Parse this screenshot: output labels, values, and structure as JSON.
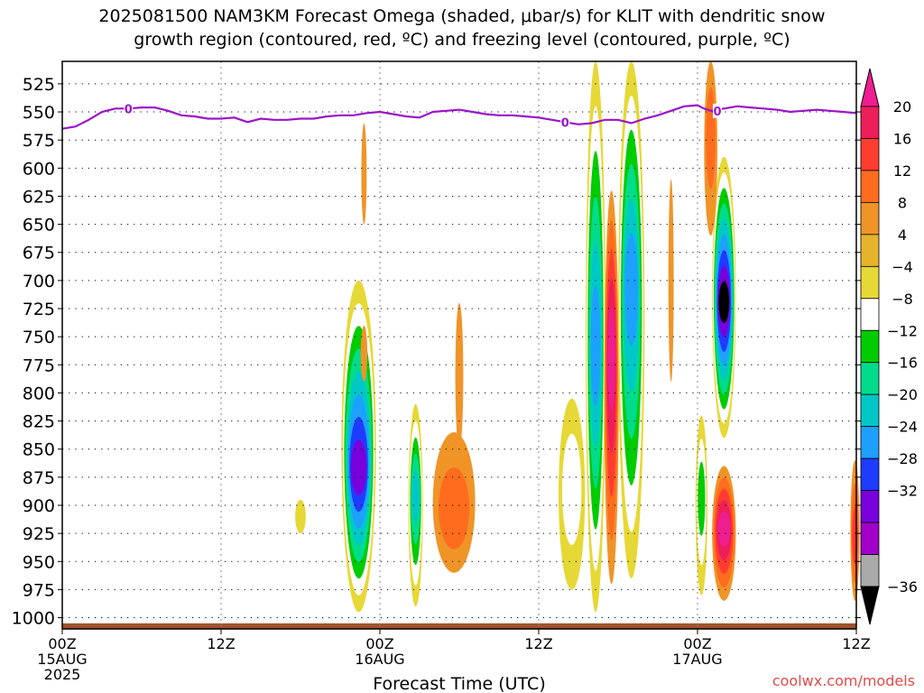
{
  "title_lines": [
    "2025081500 NAM3KM Forecast Omega (shaded, μbar/s) for KLIT with dendritic snow",
    "growth region (contoured, red, ºC) and freezing level (contoured, purple, ºC)"
  ],
  "xlabel": "Forecast Time (UTC)",
  "watermark": "coolwx.com/models",
  "chart_data": {
    "type": "heatmap",
    "title": "2025081500 NAM3KM Forecast Omega (shaded, μbar/s) for KLIT with dendritic snow growth region (contoured, red, ºC) and freezing level (contoured, purple, ºC)",
    "xlabel": "Forecast Time (UTC)",
    "ylabel": "",
    "x_unit": "hours since 2025-08-15 00Z",
    "xlim": [
      0,
      60
    ],
    "ylim": [
      1010,
      505
    ],
    "x_ticks": [
      {
        "x": 0,
        "lines": [
          "00Z",
          "15AUG",
          "2025"
        ]
      },
      {
        "x": 12,
        "lines": [
          "12Z"
        ]
      },
      {
        "x": 24,
        "lines": [
          "00Z",
          "16AUG"
        ]
      },
      {
        "x": 36,
        "lines": [
          "12Z"
        ]
      },
      {
        "x": 48,
        "lines": [
          "00Z",
          "17AUG"
        ]
      },
      {
        "x": 60,
        "lines": [
          "12Z"
        ]
      }
    ],
    "y_ticks": [
      525,
      550,
      575,
      600,
      625,
      650,
      675,
      700,
      725,
      750,
      775,
      800,
      825,
      850,
      875,
      900,
      925,
      950,
      975,
      1000
    ],
    "grid": true,
    "colorbar": {
      "labels": [
        "20",
        "16",
        "12",
        "8",
        "4",
        "−4",
        "−8",
        "−12",
        "−16",
        "−20",
        "−24",
        "−28",
        "−32",
        "−36"
      ],
      "colors": [
        "#ee1e5a",
        "#ff3c30",
        "#ff6c1e",
        "#f09428",
        "#e6b42c",
        "#e6d836",
        "#ffffff",
        "#00cc00",
        "#00dc8c",
        "#00c8c8",
        "#1ea0ff",
        "#1e3cff",
        "#7800dc",
        "#a000c8",
        "#aaaaaa"
      ],
      "top_arrow": "#ee1e90",
      "bottom_arrow": "#000000"
    },
    "freezing_level": {
      "label": "0",
      "color": "#9b14c8",
      "points": [
        [
          0,
          565
        ],
        [
          1,
          563
        ],
        [
          2,
          557
        ],
        [
          3,
          550
        ],
        [
          4,
          547
        ],
        [
          5,
          547
        ],
        [
          6,
          546
        ],
        [
          7,
          546
        ],
        [
          8,
          549
        ],
        [
          9,
          553
        ],
        [
          10,
          554
        ],
        [
          11,
          556
        ],
        [
          12,
          556
        ],
        [
          13,
          555
        ],
        [
          14,
          559
        ],
        [
          15,
          556
        ],
        [
          16,
          557
        ],
        [
          17,
          557
        ],
        [
          18,
          556
        ],
        [
          19,
          556
        ],
        [
          20,
          554
        ],
        [
          21,
          553
        ],
        [
          22,
          553
        ],
        [
          23,
          551
        ],
        [
          24,
          550
        ],
        [
          25,
          552
        ],
        [
          26,
          554
        ],
        [
          27,
          555
        ],
        [
          28,
          550
        ],
        [
          29,
          549
        ],
        [
          30,
          548
        ],
        [
          31,
          550
        ],
        [
          32,
          552
        ],
        [
          33,
          553
        ],
        [
          34,
          553
        ],
        [
          35,
          554
        ],
        [
          36,
          555
        ],
        [
          37,
          557
        ],
        [
          38,
          559
        ],
        [
          39,
          561
        ],
        [
          40,
          560
        ],
        [
          41,
          557
        ],
        [
          42,
          557
        ],
        [
          43,
          560
        ],
        [
          44,
          556
        ],
        [
          45,
          553
        ],
        [
          46,
          549
        ],
        [
          47,
          545
        ],
        [
          48,
          544
        ],
        [
          48.5,
          547
        ],
        [
          49,
          549
        ],
        [
          50,
          547
        ],
        [
          51,
          545
        ],
        [
          52,
          546
        ],
        [
          53,
          547
        ],
        [
          54,
          548
        ],
        [
          55,
          550
        ],
        [
          56,
          549
        ],
        [
          57,
          548
        ],
        [
          58,
          549
        ],
        [
          59,
          550
        ],
        [
          60,
          551
        ]
      ],
      "label_at": [
        5,
        38,
        49.5
      ]
    },
    "omega_features": [
      {
        "x": 22.4,
        "center": 870,
        "span": [
          700,
          995
        ],
        "min": -32,
        "halfwidth": 1.3
      },
      {
        "x": 26.7,
        "center": 890,
        "span": [
          810,
          990
        ],
        "min": -20,
        "halfwidth": 0.55
      },
      {
        "x": 18.0,
        "center": 910,
        "span": [
          895,
          925
        ],
        "min": -6,
        "halfwidth": 0.4
      },
      {
        "x": 29.6,
        "center": 910,
        "span": [
          835,
          960
        ],
        "max": 9,
        "halfwidth": 1.6
      },
      {
        "x": 30.0,
        "center": 810,
        "span": [
          720,
          850
        ],
        "max": 5,
        "halfwidth": 0.3
      },
      {
        "x": 22.8,
        "center": 760,
        "span": [
          740,
          790
        ],
        "max": 5,
        "halfwidth": 0.25
      },
      {
        "x": 22.8,
        "center": 600,
        "span": [
          560,
          650
        ],
        "max": 5,
        "halfwidth": 0.2
      },
      {
        "x": 38.5,
        "center": 880,
        "span": [
          805,
          975
        ],
        "min": -8,
        "halfwidth": 1.0
      },
      {
        "x": 40.3,
        "center": 760,
        "span": [
          505,
          995
        ],
        "min": -24,
        "halfwidth": 0.75
      },
      {
        "x": 41.5,
        "center": 760,
        "span": [
          620,
          970
        ],
        "max": 20,
        "halfwidth": 0.55
      },
      {
        "x": 43.0,
        "center": 700,
        "span": [
          505,
          965
        ],
        "min": -24,
        "halfwidth": 1.0
      },
      {
        "x": 48.3,
        "center": 890,
        "span": [
          820,
          980
        ],
        "min": -12,
        "halfwidth": 0.45
      },
      {
        "x": 50.0,
        "center": 720,
        "span": [
          590,
          840
        ],
        "min": -36,
        "halfwidth": 0.9
      },
      {
        "x": 50.0,
        "center": 920,
        "span": [
          865,
          985
        ],
        "max": 20,
        "halfwidth": 0.9
      },
      {
        "x": 49.0,
        "center": 560,
        "span": [
          505,
          660
        ],
        "max": 9,
        "halfwidth": 0.5
      },
      {
        "x": 46.0,
        "center": 690,
        "span": [
          610,
          790
        ],
        "max": 5,
        "halfwidth": 0.2
      },
      {
        "x": 59.9,
        "center": 930,
        "span": [
          860,
          985
        ],
        "max": 12,
        "halfwidth": 0.35
      }
    ],
    "surface": {
      "color": "#a0522d",
      "top_pressure": 1005
    }
  }
}
